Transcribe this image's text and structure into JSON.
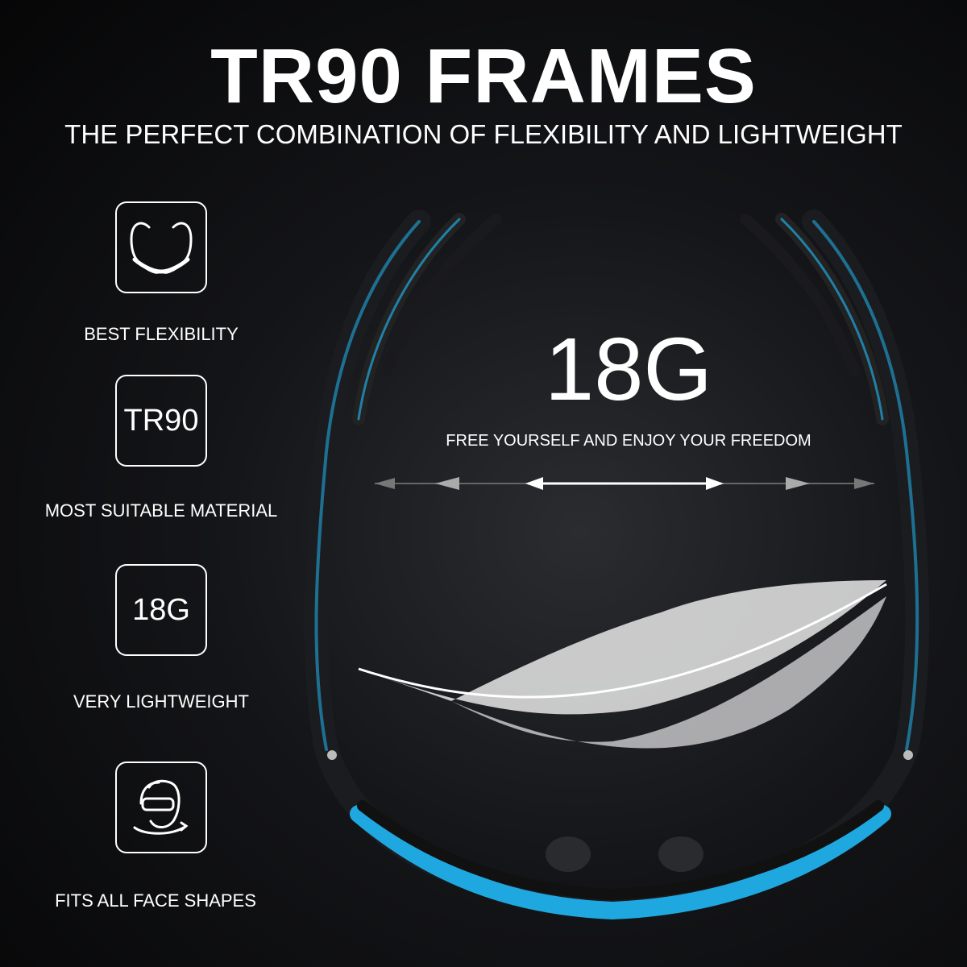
{
  "header": {
    "title": "TR90 FRAMES",
    "subtitle": "THE PERFECT COMBINATION OF FLEXIBILITY AND LIGHTWEIGHT"
  },
  "features": [
    {
      "icon": "flexible-glasses-icon",
      "label": "BEST FLEXIBILITY"
    },
    {
      "icon": "tr90-text-icon",
      "icon_text": "TR90",
      "label": "MOST SUITABLE MATERIAL"
    },
    {
      "icon": "weight-text-icon",
      "icon_text": "18G",
      "label": "VERY LIGHTWEIGHT"
    },
    {
      "icon": "face-shape-icon",
      "label": "FITS ALL FACE SHAPES"
    }
  ],
  "hero": {
    "weight": "18G",
    "tagline": "FREE YOURSELF AND ENJOY YOUR FREEDOM"
  },
  "colors": {
    "background": "#0b0b0d",
    "accent": "#1fa8e0",
    "text": "#ffffff"
  }
}
